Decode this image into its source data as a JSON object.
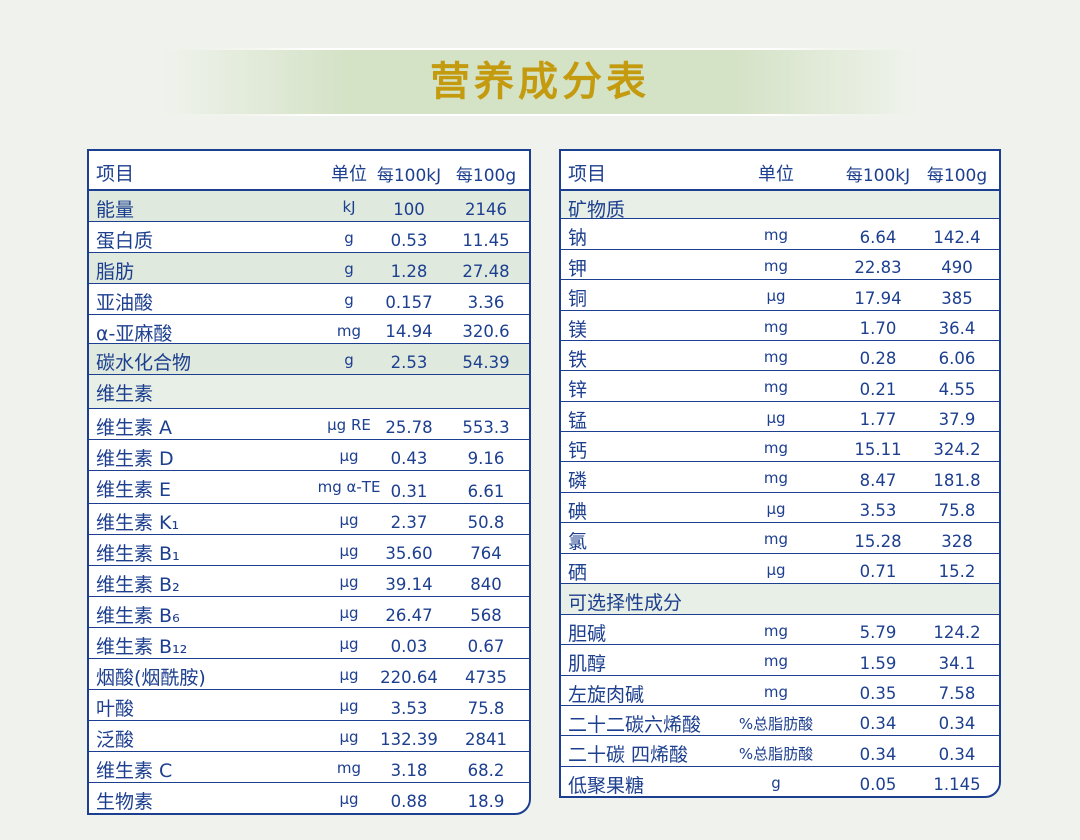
{
  "title": "营养成分表",
  "columns": {
    "item": "项目",
    "unit": "单位",
    "per_kj": "每100kJ",
    "per_g": "每100g"
  },
  "left_rows": [
    {
      "name": "能量",
      "unit": "kJ",
      "v1": "100",
      "v2": "2146"
    },
    {
      "name": "蛋白质",
      "unit": "g",
      "v1": "0.53",
      "v2": "11.45"
    },
    {
      "name": "脂肪",
      "unit": "g",
      "v1": "1.28",
      "v2": "27.48"
    },
    {
      "name": "亚油酸",
      "unit": "g",
      "v1": "0.157",
      "v2": "3.36"
    },
    {
      "name": "α-亚麻酸",
      "unit": "mg",
      "v1": "14.94",
      "v2": "320.6"
    },
    {
      "name": "碳水化合物",
      "unit": "g",
      "v1": "2.53",
      "v2": "54.39"
    },
    {
      "name": "维生素",
      "unit": "",
      "v1": "",
      "v2": ""
    },
    {
      "name": "维生素 A",
      "unit": "μg RE",
      "v1": "25.78",
      "v2": "553.3"
    },
    {
      "name": "维生素 D",
      "unit": "μg",
      "v1": "0.43",
      "v2": "9.16"
    },
    {
      "name": "维生素 E",
      "unit": "mg α-TE",
      "v1": "0.31",
      "v2": "6.61"
    },
    {
      "name": "维生素 K₁",
      "unit": "μg",
      "v1": "2.37",
      "v2": "50.8"
    },
    {
      "name": "维生素 B₁",
      "unit": "μg",
      "v1": "35.60",
      "v2": "764"
    },
    {
      "name": "维生素 B₂",
      "unit": "μg",
      "v1": "39.14",
      "v2": "840"
    },
    {
      "name": "维生素 B₆",
      "unit": "μg",
      "v1": "26.47",
      "v2": "568"
    },
    {
      "name": "维生素 B₁₂",
      "unit": "μg",
      "v1": "0.03",
      "v2": "0.67"
    },
    {
      "name": "烟酸(烟酰胺)",
      "unit": "μg",
      "v1": "220.64",
      "v2": "4735"
    },
    {
      "name": "叶酸",
      "unit": "μg",
      "v1": "3.53",
      "v2": "75.8"
    },
    {
      "name": "泛酸",
      "unit": "μg",
      "v1": "132.39",
      "v2": "2841"
    },
    {
      "name": "维生素 C",
      "unit": "mg",
      "v1": "3.18",
      "v2": "68.2"
    },
    {
      "name": "生物素",
      "unit": "μg",
      "v1": "0.88",
      "v2": "18.9"
    }
  ],
  "right_rows": [
    {
      "name": "矿物质",
      "unit": "",
      "v1": "",
      "v2": ""
    },
    {
      "name": "钠",
      "unit": "mg",
      "v1": "6.64",
      "v2": "142.4"
    },
    {
      "name": "钾",
      "unit": "mg",
      "v1": "22.83",
      "v2": "490"
    },
    {
      "name": "铜",
      "unit": "μg",
      "v1": "17.94",
      "v2": "385"
    },
    {
      "name": "镁",
      "unit": "mg",
      "v1": "1.70",
      "v2": "36.4"
    },
    {
      "name": "铁",
      "unit": "mg",
      "v1": "0.28",
      "v2": "6.06"
    },
    {
      "name": "锌",
      "unit": "mg",
      "v1": "0.21",
      "v2": "4.55"
    },
    {
      "name": "锰",
      "unit": "μg",
      "v1": "1.77",
      "v2": "37.9"
    },
    {
      "name": "钙",
      "unit": "mg",
      "v1": "15.11",
      "v2": "324.2"
    },
    {
      "name": "磷",
      "unit": "mg",
      "v1": "8.47",
      "v2": "181.8"
    },
    {
      "name": "碘",
      "unit": "μg",
      "v1": "3.53",
      "v2": "75.8"
    },
    {
      "name": "氯",
      "unit": "mg",
      "v1": "15.28",
      "v2": "328"
    },
    {
      "name": "硒",
      "unit": "μg",
      "v1": "0.71",
      "v2": "15.2"
    },
    {
      "name": "可选择性成分",
      "unit": "",
      "v1": "",
      "v2": ""
    },
    {
      "name": "胆碱",
      "unit": "mg",
      "v1": "5.79",
      "v2": "124.2"
    },
    {
      "name": "肌醇",
      "unit": "mg",
      "v1": "1.59",
      "v2": "34.1"
    },
    {
      "name": "左旋肉碱",
      "unit": "mg",
      "v1": "0.35",
      "v2": "7.58"
    },
    {
      "name": "二十二碳六烯酸",
      "unit": "%总脂肪酸",
      "v1": "0.34",
      "v2": "0.34"
    },
    {
      "name": "二十碳 四烯酸",
      "unit": "%总脂肪酸",
      "v1": "0.34",
      "v2": "0.34"
    },
    {
      "name": "低聚果糖",
      "unit": "g",
      "v1": "0.05",
      "v2": "1.145"
    }
  ]
}
